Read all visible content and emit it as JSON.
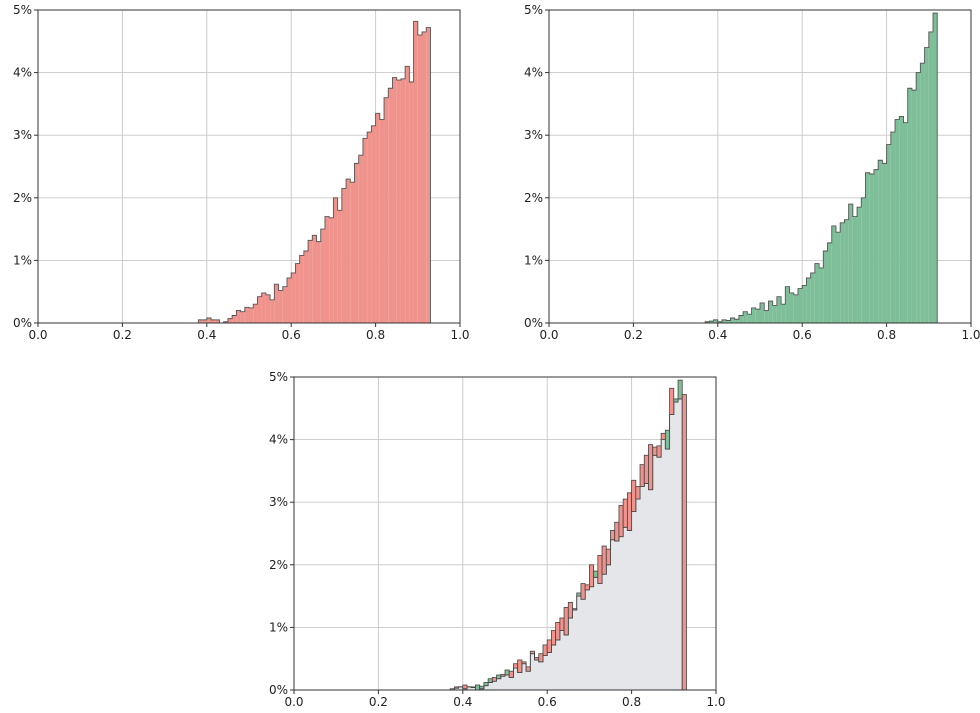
{
  "chart_data": [
    {
      "type": "histogram",
      "panel": "top-left",
      "title": "",
      "xlabel": "",
      "ylabel": "",
      "xlim": [
        0.0,
        1.0
      ],
      "ylim": [
        0,
        5
      ],
      "grid": true,
      "xticks": [
        "0.0",
        "0.2",
        "0.4",
        "0.6",
        "0.8",
        "1.0"
      ],
      "yticks": [
        "0%",
        "1%",
        "2%",
        "3%",
        "4%",
        "5%"
      ],
      "fill_color": "#f0938c",
      "bin_start": 0.38,
      "bin_width": 0.01,
      "values": [
        0.05,
        0.05,
        0.08,
        0.05,
        0.05,
        0.0,
        0.02,
        0.07,
        0.12,
        0.2,
        0.18,
        0.25,
        0.24,
        0.3,
        0.42,
        0.48,
        0.45,
        0.37,
        0.62,
        0.52,
        0.58,
        0.72,
        0.8,
        0.95,
        1.08,
        1.15,
        1.32,
        1.4,
        1.3,
        1.5,
        1.7,
        1.68,
        2.0,
        1.8,
        2.15,
        2.3,
        2.25,
        2.55,
        2.68,
        2.95,
        3.05,
        3.15,
        3.35,
        3.25,
        3.6,
        3.75,
        3.92,
        3.88,
        3.9,
        4.1,
        3.85,
        4.82,
        4.6,
        4.65,
        4.72
      ]
    },
    {
      "type": "histogram",
      "panel": "top-right",
      "title": "",
      "xlabel": "",
      "ylabel": "",
      "xlim": [
        0.0,
        1.0
      ],
      "ylim": [
        0,
        5
      ],
      "grid": true,
      "xticks": [
        "0.0",
        "0.2",
        "0.4",
        "0.6",
        "0.8",
        "1.0"
      ],
      "yticks": [
        "0%",
        "1%",
        "2%",
        "3%",
        "4%",
        "5%"
      ],
      "fill_color": "#7ebf99",
      "bin_start": 0.37,
      "bin_width": 0.01,
      "values": [
        0.02,
        0.03,
        0.05,
        0.02,
        0.05,
        0.04,
        0.08,
        0.06,
        0.12,
        0.18,
        0.14,
        0.24,
        0.22,
        0.32,
        0.2,
        0.35,
        0.28,
        0.42,
        0.3,
        0.58,
        0.48,
        0.45,
        0.55,
        0.6,
        0.72,
        0.8,
        0.95,
        0.88,
        1.15,
        1.28,
        1.55,
        1.45,
        1.6,
        1.65,
        1.9,
        1.7,
        1.85,
        2.0,
        2.4,
        2.38,
        2.45,
        2.6,
        2.55,
        2.85,
        3.05,
        3.25,
        3.3,
        3.2,
        3.75,
        3.72,
        4.0,
        4.15,
        4.4,
        4.65,
        4.95
      ]
    },
    {
      "type": "histogram",
      "panel": "bottom-center",
      "title": "",
      "xlabel": "",
      "ylabel": "",
      "xlim": [
        0.0,
        1.0
      ],
      "ylim": [
        0,
        5
      ],
      "grid": true,
      "xticks": [
        "0.0",
        "0.2",
        "0.4",
        "0.6",
        "0.8",
        "1.0"
      ],
      "yticks": [
        "0%",
        "1%",
        "2%",
        "3%",
        "4%",
        "5%"
      ],
      "base_fill_color": "#e4e6e9",
      "red_color": "#f0938c",
      "green_color": "#7ebf99",
      "note_overlay": "overlay of the two distributions above"
    }
  ]
}
